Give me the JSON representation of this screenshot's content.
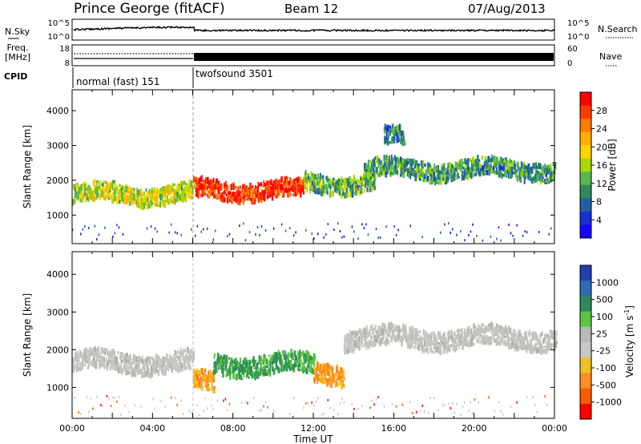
{
  "header": {
    "station": "Prince George (fitACF)",
    "beam": "Beam 12",
    "date": "07/Aug/2013"
  },
  "nsky": {
    "label": "N.Sky",
    "left_ticks": [
      "10^5",
      "10^0"
    ],
    "right_ticks": [
      "10^5",
      "10^0"
    ],
    "right_label": "N.Search"
  },
  "freq": {
    "label_line1": "Freq.",
    "label_line2": "[MHz]",
    "left_ticks": [
      "18",
      "8"
    ],
    "right_ticks": [
      "60",
      "0"
    ],
    "right_label": "Nave"
  },
  "cpid": {
    "label": "CPID",
    "programs": [
      {
        "name": "normal (fast) 151",
        "start_hour": 0
      },
      {
        "name": "twofsound 3501",
        "start_hour": 6
      }
    ]
  },
  "power_panel": {
    "ylabel": "Slant Range [km]",
    "yticks": [
      "1000",
      "2000",
      "3000",
      "4000"
    ],
    "colorbar_label": "Power [dB]",
    "colorbar_ticks": [
      "28",
      "24",
      "20",
      "16",
      "12",
      "8",
      "4"
    ],
    "colorbar_colors": [
      "#ff0000",
      "#ff3a00",
      "#ff7a00",
      "#ffb000",
      "#ffd400",
      "#a8d800",
      "#54b84a",
      "#2e8a5a",
      "#1f5fa8",
      "#1630d8",
      "#1a00ff"
    ]
  },
  "velocity_panel": {
    "ylabel": "Slant Range [km]",
    "yticks": [
      "1000",
      "2000",
      "3000",
      "4000"
    ],
    "colorbar_label": "Velocity [m s",
    "colorbar_label_sup": "-1",
    "colorbar_label_end": "]",
    "colorbar_ticks": [
      "1000",
      "500",
      "100",
      "25",
      "-25",
      "-100",
      "-500",
      "-1000"
    ],
    "colorbar_colors": [
      "#2040b0",
      "#2e6ab8",
      "#2e8a5a",
      "#58c840",
      "#b8b8b8",
      "#c8c8c8",
      "#f0c020",
      "#ff9020",
      "#ff5a00",
      "#ff0000"
    ]
  },
  "xaxis": {
    "label": "Time UT",
    "ticks": [
      "00:00",
      "04:00",
      "08:00",
      "12:00",
      "16:00",
      "20:00",
      "00:00"
    ]
  },
  "chart_data": [
    {
      "type": "heatmap",
      "title": "Power",
      "xlabel": "Time UT",
      "ylabel": "Slant Range [km]",
      "xlim": [
        0,
        24
      ],
      "ylim": [
        180,
        4600
      ],
      "colorbar": "Power [dB]",
      "clim": [
        0,
        30
      ],
      "scatter_bands": [
        {
          "t_start": 0,
          "t_end": 6,
          "range_km": 1600,
          "power_db": 16
        },
        {
          "t_start": 6,
          "t_end": 11.5,
          "range_km": 1700,
          "power_db": 28
        },
        {
          "t_start": 11.5,
          "t_end": 15,
          "range_km": 1900,
          "power_db": 12
        },
        {
          "t_start": 14.5,
          "t_end": 24,
          "range_km": 2300,
          "power_db": 10
        },
        {
          "t_start": 15.5,
          "t_end": 16.5,
          "range_km": 3200,
          "power_db": 8
        }
      ]
    },
    {
      "type": "heatmap",
      "title": "Velocity",
      "xlabel": "Time UT",
      "ylabel": "Slant Range [km]",
      "xlim": [
        0,
        24
      ],
      "ylim": [
        180,
        4600
      ],
      "colorbar": "Velocity [m s-1]",
      "clim": [
        -1000,
        1000
      ],
      "scatter_bands": [
        {
          "t_start": 0,
          "t_end": 6,
          "range_km": 1650,
          "velocity": 0
        },
        {
          "t_start": 6,
          "t_end": 7,
          "range_km": 1100,
          "velocity": -150
        },
        {
          "t_start": 7,
          "t_end": 12,
          "range_km": 1600,
          "velocity": 120
        },
        {
          "t_start": 12,
          "t_end": 13.5,
          "range_km": 1400,
          "velocity": -120
        },
        {
          "t_start": 13.5,
          "t_end": 24,
          "range_km": 2300,
          "velocity": 0
        }
      ]
    }
  ]
}
